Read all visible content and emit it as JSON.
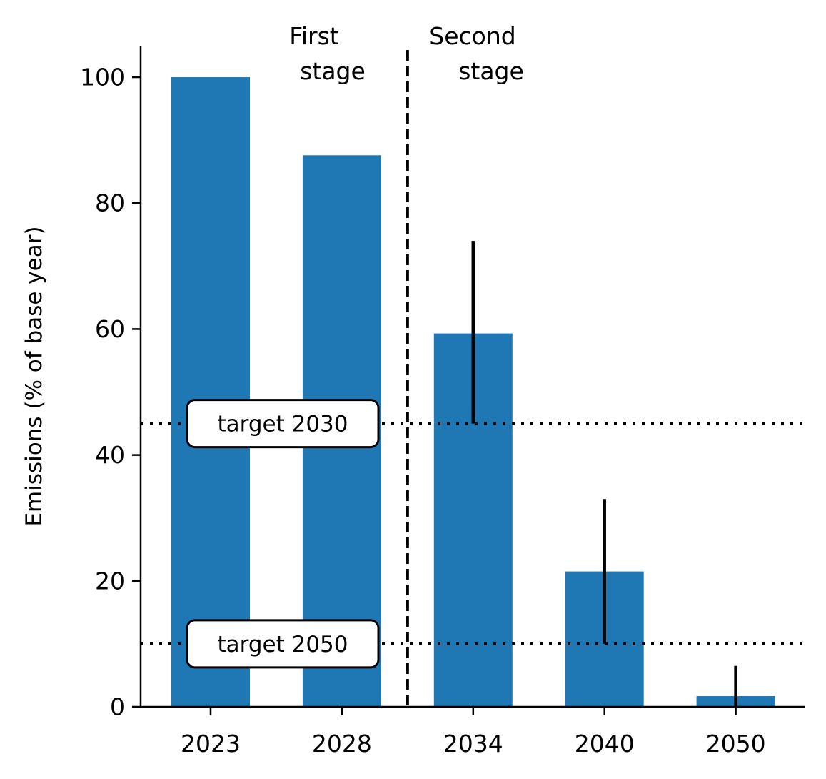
{
  "chart_data": {
    "type": "bar",
    "title": "",
    "xlabel": "",
    "ylabel": "Emissions (% of base year)",
    "categories": [
      "2023",
      "2028",
      "2034",
      "2040",
      "2050"
    ],
    "values": [
      100,
      87.6,
      59.3,
      21.5,
      1.7
    ],
    "error_bars": [
      {
        "category": "2034",
        "low": 45,
        "high": 74
      },
      {
        "category": "2040",
        "low": 10,
        "high": 33
      },
      {
        "category": "2050",
        "low": 0,
        "high": 6.5
      }
    ],
    "ylim": [
      0,
      105
    ],
    "yticks": [
      0,
      20,
      40,
      60,
      80,
      100
    ],
    "bar_color": "#1f77b4",
    "grid": false,
    "stage_labels": [
      {
        "lines": [
          "First",
          "stage"
        ]
      },
      {
        "lines": [
          "Second",
          "stage"
        ]
      }
    ],
    "stage_divider": "between 2028 and 2034",
    "reference_lines": [
      {
        "label": "target 2030",
        "value": 45
      },
      {
        "label": "target 2050",
        "value": 10
      }
    ]
  }
}
